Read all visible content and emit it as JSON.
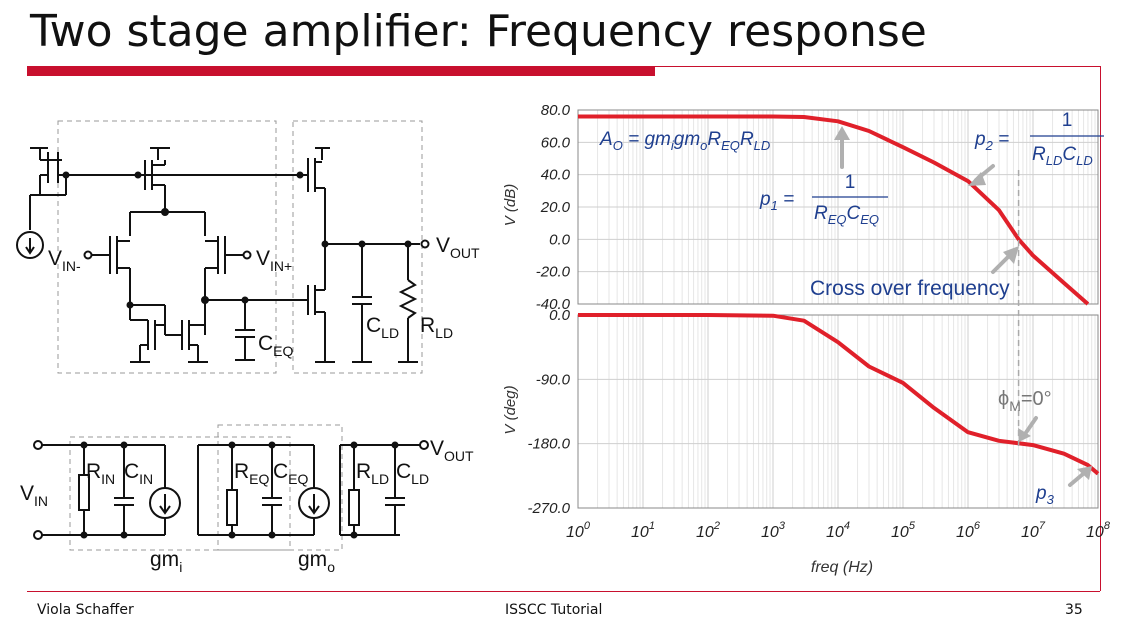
{
  "slide": {
    "title": "Two stage amplifier: Frequency response",
    "footer_left": "Viola Schaffer",
    "footer_center": "ISSCC Tutorial",
    "footer_right": "35"
  },
  "circuit_top": {
    "vin_minus": "V",
    "vin_minus_sub": "IN-",
    "vin_plus": "V",
    "vin_plus_sub": "IN+",
    "vout": "V",
    "vout_sub": "OUT",
    "ceq": "C",
    "ceq_sub": "EQ",
    "cld": "C",
    "cld_sub": "LD",
    "rld": "R",
    "rld_sub": "LD"
  },
  "circuit_bottom": {
    "vin": "V",
    "vin_sub": "IN",
    "vout": "V",
    "vout_sub": "OUT",
    "rin": "R",
    "rin_sub": "IN",
    "cin": "C",
    "cin_sub": "IN",
    "req": "R",
    "req_sub": "EQ",
    "ceq": "C",
    "ceq_sub": "EQ",
    "rld": "R",
    "rld_sub": "LD",
    "cld": "C",
    "cld_sub": "LD",
    "gmi": "gm",
    "gmi_sub": "i",
    "gmo": "gm",
    "gmo_sub": "o"
  },
  "annotations": {
    "a0": "A",
    "a0_sub": "O",
    "a0_rhs": " = gm",
    "a0_rhs_i": "i",
    "a0_gm": "gm",
    "a0_o": "o",
    "a0_r": "R",
    "a0_req": "EQ",
    "a0_r2": "R",
    "a0_rld": "LD",
    "p1": "p",
    "p1_sub": "1",
    "p1_eq": " = ",
    "p1_num": "1",
    "p1_den_r": "R",
    "p1_den_r_sub": "EQ",
    "p1_den_c": "C",
    "p1_den_c_sub": "EQ",
    "p2": "p",
    "p2_sub": "2",
    "p2_eq": " = ",
    "p2_num": "1",
    "p2_den_r": "R",
    "p2_den_r_sub": "LD",
    "p2_den_c": "C",
    "p2_den_c_sub": "LD",
    "crossover": "Cross over frequency",
    "phase_margin": "ϕ",
    "phase_margin_sub": "M",
    "phase_margin_val": "=0°",
    "p3": "p",
    "p3_sub": "3"
  },
  "colors": {
    "accent_red": "#c8102e",
    "curve_red": "#e0202a",
    "annotation_blue": "#1f3f8f",
    "arrow_gray": "#b0b0b0"
  },
  "chart_data": [
    {
      "type": "line",
      "ylabel": "V (dB)",
      "x_scale": "log",
      "xlim": [
        1,
        100000000
      ],
      "ylim": [
        -40,
        80
      ],
      "yticks": [
        80,
        60,
        40,
        20,
        0,
        -20,
        -40
      ],
      "ytick_labels": [
        "80.0",
        "60.0",
        "40.0",
        "20.0",
        "0.0",
        "-20.0",
        "-40.0"
      ],
      "grid": true,
      "x": [
        1,
        10,
        100,
        1000,
        3000,
        10000,
        30000,
        100000,
        300000,
        1000000,
        3000000,
        6000000,
        10000000,
        30000000,
        70000000
      ],
      "y": [
        76,
        76,
        76,
        76,
        75.7,
        73,
        67,
        57,
        47.5,
        36,
        18,
        0,
        -10,
        -27,
        -40
      ]
    },
    {
      "type": "line",
      "xlabel": "freq (Hz)",
      "ylabel": "V (deg)",
      "x_scale": "log",
      "xlim": [
        1,
        100000000
      ],
      "ylim": [
        -270,
        0
      ],
      "yticks": [
        0,
        -90,
        -180,
        -270
      ],
      "ytick_labels": [
        "0.0",
        "-90.0",
        "-180.0",
        "-270.0"
      ],
      "xtick_labels": [
        {
          "base": "10",
          "exp": "0"
        },
        {
          "base": "10",
          "exp": "1"
        },
        {
          "base": "10",
          "exp": "2"
        },
        {
          "base": "10",
          "exp": "3"
        },
        {
          "base": "10",
          "exp": "4"
        },
        {
          "base": "10",
          "exp": "5"
        },
        {
          "base": "10",
          "exp": "6"
        },
        {
          "base": "10",
          "exp": "7"
        },
        {
          "base": "10",
          "exp": "8"
        }
      ],
      "grid": true,
      "x": [
        1,
        10,
        100,
        1000,
        3000,
        10000,
        30000,
        100000,
        300000,
        1000000,
        3000000,
        10000000,
        30000000,
        70000000,
        100000000
      ],
      "y": [
        0,
        0,
        0,
        -1,
        -8,
        -38,
        -72,
        -95,
        -130,
        -164,
        -176,
        -182,
        -194,
        -210,
        -222
      ]
    }
  ]
}
